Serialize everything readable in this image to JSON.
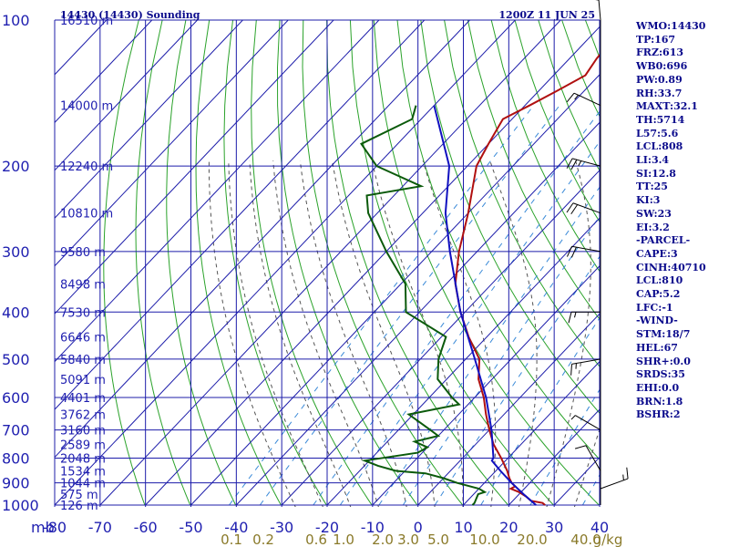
{
  "header": {
    "station": "14430 (14430) Sounding",
    "time": "1200Z 11 JUN 25"
  },
  "indices": [
    "WMO:14430",
    "TP:167",
    "FRZ:613",
    "WB0:696",
    "PW:0.89",
    "RH:33.7",
    "MAXT:32.1",
    "TH:5714",
    "L57:5.6",
    "LCL:808",
    "LI:3.4",
    "SI:12.8",
    "TT:25",
    "KI:3",
    "SW:23",
    "EI:3.2",
    "-PARCEL-",
    "CAPE:3",
    "CINH:40710",
    "LCL:810",
    "CAP:5.2",
    "LFC:-1",
    "-WIND-",
    "STM:18/7",
    "HEL:67",
    "SHR+:0.0",
    "SRDS:35",
    "EHI:0.0",
    "BRN:1.8",
    "BSHR:2"
  ],
  "colors": {
    "grid": "#1c1caa",
    "isotherm": "#1c1caa",
    "dry_adiabat": "#2aa22a",
    "moist_adiabat": "#555555",
    "mixing_ratio": "#3a8ad8",
    "temperature": "#b01010",
    "dewpoint": "#0b5a0b",
    "parcel": "#1010c0",
    "wind": "#000000"
  },
  "chart_data": {
    "type": "skew-t",
    "xlim": [
      -80,
      40
    ],
    "ylim": [
      1000,
      100
    ],
    "pressure_ticks": [
      100,
      200,
      300,
      400,
      500,
      600,
      700,
      800,
      900,
      1000
    ],
    "pressure_unit": "mb",
    "temperature_ticks": [
      -80,
      -70,
      -60,
      -50,
      -40,
      -30,
      -20,
      -10,
      0,
      10,
      20,
      30,
      40
    ],
    "height_labels": [
      {
        "p": 100,
        "label": "16510 m"
      },
      {
        "p": 150,
        "label": "14000 m"
      },
      {
        "p": 200,
        "label": "12240 m"
      },
      {
        "p": 250,
        "label": "10810 m"
      },
      {
        "p": 300,
        "label": "9580 m"
      },
      {
        "p": 350,
        "label": "8498 m"
      },
      {
        "p": 400,
        "label": "7530 m"
      },
      {
        "p": 450,
        "label": "6646 m"
      },
      {
        "p": 500,
        "label": "5840 m"
      },
      {
        "p": 550,
        "label": "5091 m"
      },
      {
        "p": 600,
        "label": "4401 m"
      },
      {
        "p": 650,
        "label": "3762 m"
      },
      {
        "p": 700,
        "label": "3160 m"
      },
      {
        "p": 750,
        "label": "2589 m"
      },
      {
        "p": 800,
        "label": "2048 m"
      },
      {
        "p": 850,
        "label": "1534 m"
      },
      {
        "p": 900,
        "label": "1044 m"
      },
      {
        "p": 950,
        "label": "575 m"
      },
      {
        "p": 1000,
        "label": "126 m"
      }
    ],
    "mixing_ratio_labels": [
      "0.1",
      "0.2",
      "0.6",
      "1.0",
      "2.0",
      "3.0",
      "5.0",
      "10.0",
      "20.0",
      "40.0",
      "g/kg"
    ],
    "series": [
      {
        "name": "temperature",
        "points": [
          [
            1000,
            28.0
          ],
          [
            990,
            27.0
          ],
          [
            980,
            24.0
          ],
          [
            960,
            22.0
          ],
          [
            940,
            19.5
          ],
          [
            925,
            17.0
          ],
          [
            915,
            17.5
          ],
          [
            900,
            16.0
          ],
          [
            880,
            14.5
          ],
          [
            850,
            12.5
          ],
          [
            800,
            8.5
          ],
          [
            750,
            4.0
          ],
          [
            700,
            0.0
          ],
          [
            650,
            -4.0
          ],
          [
            600,
            -8.0
          ],
          [
            550,
            -13.0
          ],
          [
            500,
            -17.0
          ],
          [
            450,
            -24.0
          ],
          [
            400,
            -31.0
          ],
          [
            350,
            -38.0
          ],
          [
            300,
            -44.0
          ],
          [
            250,
            -50.0
          ],
          [
            200,
            -58.0
          ],
          [
            180,
            -60.0
          ],
          [
            160,
            -62.0
          ],
          [
            150,
            -59.0
          ],
          [
            140,
            -56.0
          ],
          [
            130,
            -53.0
          ],
          [
            120,
            -54.0
          ],
          [
            110,
            -54.5
          ],
          [
            100,
            -56.0
          ]
        ]
      },
      {
        "name": "dewpoint",
        "points": [
          [
            1000,
            12.0
          ],
          [
            990,
            12.0
          ],
          [
            950,
            11.0
          ],
          [
            940,
            12.0
          ],
          [
            925,
            10.0
          ],
          [
            900,
            4.0
          ],
          [
            880,
            0.0
          ],
          [
            860,
            -5.0
          ],
          [
            850,
            -12.0
          ],
          [
            830,
            -17.0
          ],
          [
            810,
            -21.0
          ],
          [
            780,
            -11.0
          ],
          [
            760,
            -10.0
          ],
          [
            740,
            -14.0
          ],
          [
            720,
            -10.0
          ],
          [
            700,
            -13.0
          ],
          [
            650,
            -21.0
          ],
          [
            620,
            -12.0
          ],
          [
            600,
            -15.0
          ],
          [
            550,
            -22.0
          ],
          [
            500,
            -26.0
          ],
          [
            450,
            -29.0
          ],
          [
            400,
            -43.0
          ],
          [
            350,
            -49.0
          ],
          [
            300,
            -60.0
          ],
          [
            250,
            -72.0
          ],
          [
            230,
            -76.0
          ],
          [
            220,
            -66.0
          ],
          [
            200,
            -80.0
          ],
          [
            180,
            -88.0
          ],
          [
            160,
            -82.0
          ],
          [
            150,
            -84.0
          ]
        ]
      },
      {
        "name": "parcel",
        "points": [
          [
            1000,
            26.0
          ],
          [
            950,
            21.0
          ],
          [
            900,
            16.0
          ],
          [
            850,
            11.0
          ],
          [
            810,
            7.0
          ],
          [
            800,
            6.8
          ],
          [
            700,
            0.5
          ],
          [
            600,
            -7.5
          ],
          [
            500,
            -18.0
          ],
          [
            400,
            -31.0
          ],
          [
            300,
            -46.0
          ],
          [
            250,
            -55.0
          ],
          [
            200,
            -64.0
          ],
          [
            150,
            -80.0
          ]
        ]
      }
    ],
    "wind_barbs": [
      {
        "p": 1000,
        "dir": 30,
        "spd": 0
      },
      {
        "p": 925,
        "dir": 70,
        "spd": 15
      },
      {
        "p": 850,
        "dir": 330,
        "spd": 10
      },
      {
        "p": 700,
        "dir": 300,
        "spd": 5
      },
      {
        "p": 500,
        "dir": 260,
        "spd": 15
      },
      {
        "p": 400,
        "dir": 270,
        "spd": 15
      },
      {
        "p": 300,
        "dir": 280,
        "spd": 20
      },
      {
        "p": 250,
        "dir": 290,
        "spd": 20
      },
      {
        "p": 200,
        "dir": 285,
        "spd": 25
      },
      {
        "p": 150,
        "dir": 295,
        "spd": 15
      },
      {
        "p": 100,
        "dir": 355,
        "spd": 25
      }
    ]
  }
}
